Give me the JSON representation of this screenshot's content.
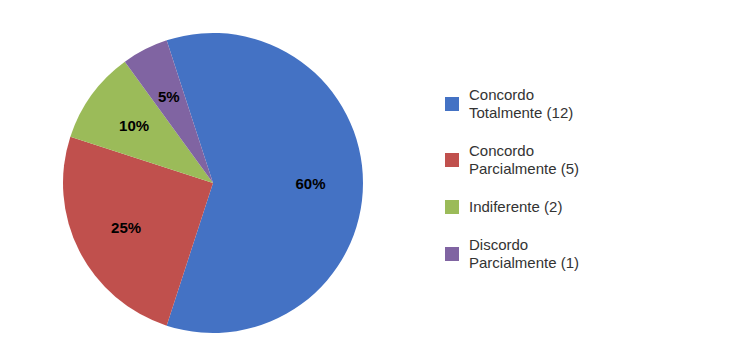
{
  "chart_data": {
    "type": "pie",
    "categories": [
      "Concordo\nTotalmente (12)",
      "Concordo\nParcialmente (5)",
      "Indiferente (2)",
      "Discordo\nParcialmente (1)"
    ],
    "values": [
      60,
      25,
      10,
      5
    ],
    "value_labels": [
      "60%",
      "25%",
      "10%",
      "5%"
    ],
    "colors": [
      "#4472C4",
      "#C0504D",
      "#9BBB59",
      "#8064A2"
    ],
    "data_labels": true,
    "legend": "right"
  }
}
